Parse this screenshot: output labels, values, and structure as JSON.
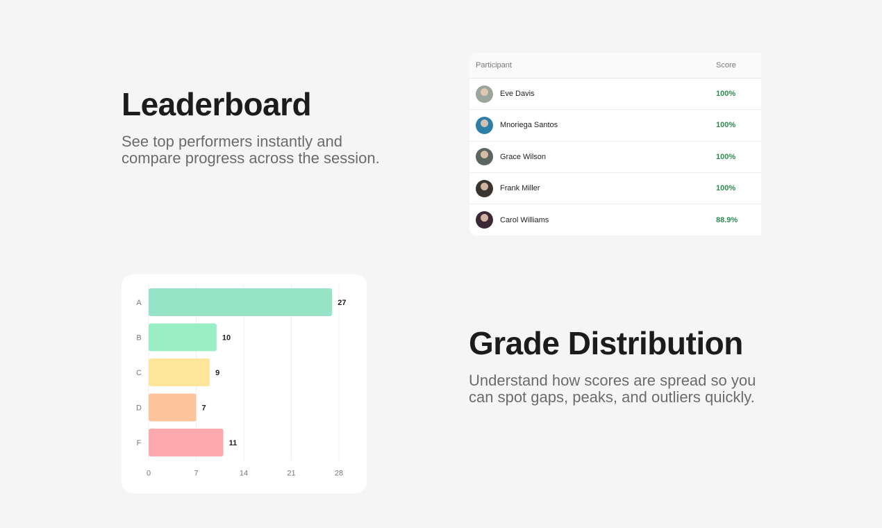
{
  "leaderboard": {
    "title": "Leaderboard",
    "description": "See top performers instantly and compare progress across the session.",
    "columns": {
      "participant": "Participant",
      "score": "Score"
    },
    "rows": [
      {
        "name": "Eve Davis",
        "score": "100%"
      },
      {
        "name": "Mnoriega Santos",
        "score": "100%"
      },
      {
        "name": "Grace Wilson",
        "score": "100%"
      },
      {
        "name": "Frank Miller",
        "score": "100%"
      },
      {
        "name": "Carol Williams",
        "score": "88.9%"
      }
    ],
    "score_color": "#2e8b4e"
  },
  "grade_distribution": {
    "title": "Grade Distribution",
    "description": "Understand how scores are spread so you can spot gaps, peaks, and outliers quickly."
  },
  "chart_data": {
    "type": "bar",
    "orientation": "horizontal",
    "categories": [
      "A",
      "B",
      "C",
      "D",
      "F"
    ],
    "values": [
      27,
      10,
      9,
      7,
      11
    ],
    "colors": [
      "#96e3c8",
      "#9aeec4",
      "#fde59a",
      "#fdc49c",
      "#fda9ad"
    ],
    "xlim": [
      0,
      28
    ],
    "xticks": [
      0,
      7,
      14,
      21,
      28
    ],
    "grid": true
  }
}
